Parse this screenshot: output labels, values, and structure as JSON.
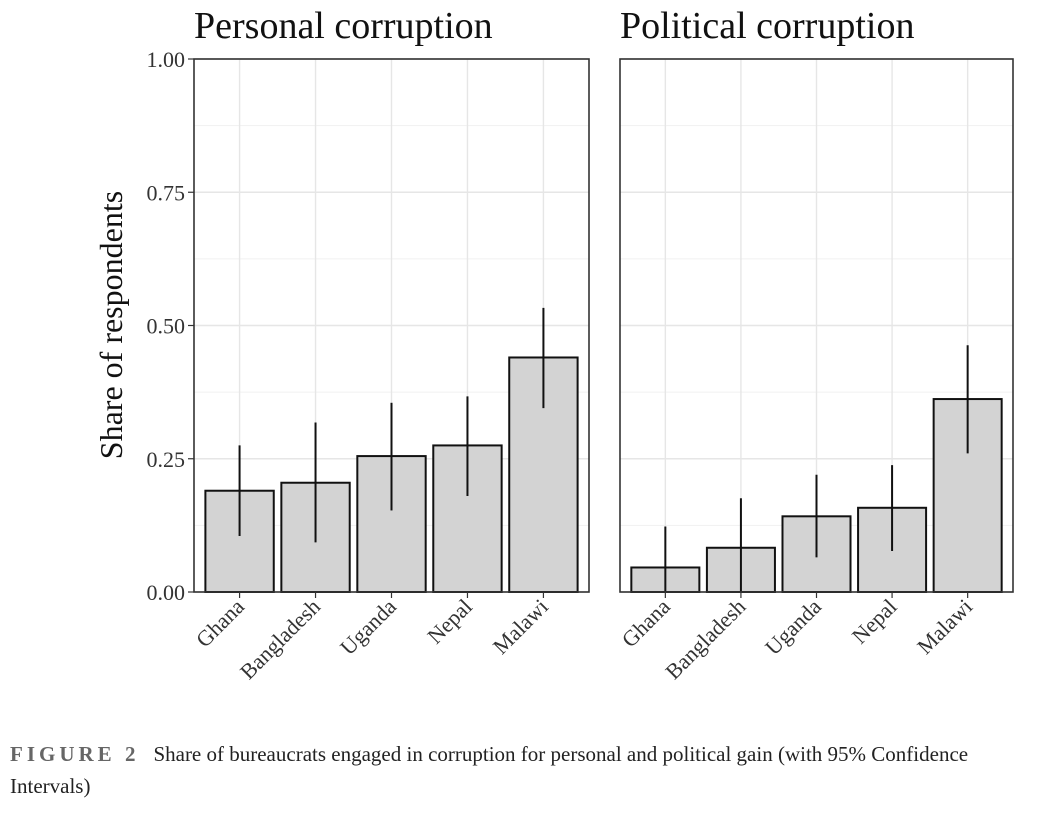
{
  "chart_data": {
    "type": "bar",
    "ylabel": "Share of respondents",
    "ylim": [
      0,
      1
    ],
    "yticks": [
      "0.00",
      "0.25",
      "0.50",
      "0.75",
      "1.00"
    ],
    "ytick_values": [
      0,
      0.25,
      0.5,
      0.75,
      1.0
    ],
    "grid": true,
    "error_bars": "95% confidence intervals",
    "categories": [
      "Ghana",
      "Bangladesh",
      "Uganda",
      "Nepal",
      "Malawi"
    ],
    "panels": [
      {
        "title": "Personal corruption",
        "values": [
          0.19,
          0.205,
          0.255,
          0.275,
          0.44
        ],
        "ci_low": [
          0.105,
          0.093,
          0.153,
          0.18,
          0.345
        ],
        "ci_high": [
          0.275,
          0.318,
          0.355,
          0.367,
          0.533
        ]
      },
      {
        "title": "Political corruption",
        "values": [
          0.046,
          0.083,
          0.142,
          0.158,
          0.362
        ],
        "ci_low": [
          0.0,
          0.0,
          0.065,
          0.077,
          0.26
        ],
        "ci_high": [
          0.123,
          0.176,
          0.22,
          0.238,
          0.463
        ]
      }
    ]
  },
  "caption": {
    "label": "FIGURE",
    "number": "2",
    "text": "Share of bureaucrats engaged in corruption for personal and political gain (with 95% Confidence Intervals)"
  },
  "colors": {
    "bar_fill": "#d3d3d3",
    "bar_stroke": "#111111",
    "grid": "#e6e6e6",
    "panel_border": "#333333",
    "caption_label": "#666666"
  }
}
